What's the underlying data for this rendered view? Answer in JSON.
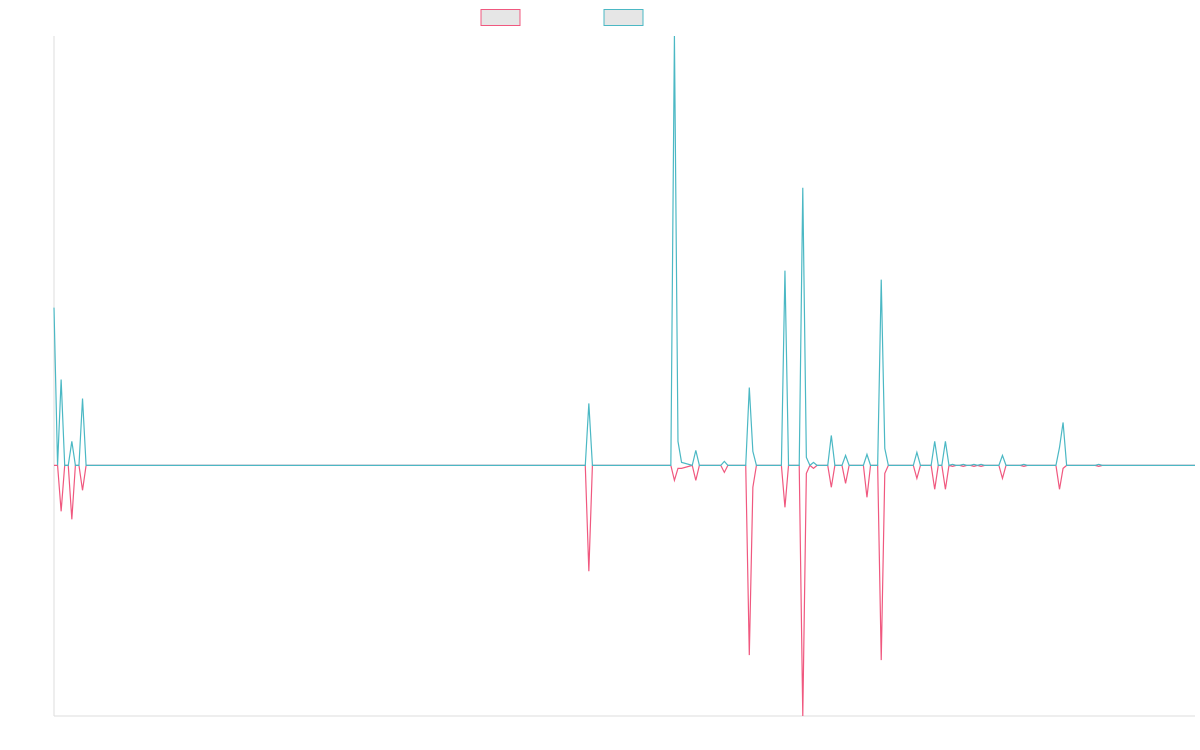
{
  "chart_data": {
    "type": "line",
    "x": [
      0,
      1,
      2,
      3,
      4,
      5,
      6,
      7,
      8,
      9,
      149,
      150,
      151,
      173,
      174,
      175,
      176,
      179,
      180,
      181,
      187,
      188,
      189,
      194,
      195,
      196,
      197,
      204,
      205,
      206,
      209,
      210,
      211,
      212,
      213,
      214,
      217,
      218,
      219,
      221,
      222,
      223,
      227,
      228,
      229,
      231,
      232,
      233,
      234,
      241,
      242,
      243,
      246,
      247,
      248,
      249,
      250,
      251,
      252,
      253,
      254,
      255,
      256,
      257,
      258,
      259,
      260,
      261,
      265,
      266,
      267,
      271,
      272,
      273,
      281,
      282,
      283,
      284,
      292,
      293,
      294,
      320
    ],
    "series": [
      {
        "color": "#f0587f",
        "values": [
          0,
          0,
          -46,
          0,
          0,
          -54,
          0,
          0,
          -25,
          0,
          0,
          -106,
          0,
          0,
          -15,
          -3,
          -3,
          0,
          -15,
          0,
          0,
          -7,
          0,
          0,
          -190,
          -22,
          0,
          0,
          -42,
          0,
          0,
          -251,
          -8,
          0,
          -3,
          0,
          0,
          -22,
          0,
          0,
          -18,
          0,
          0,
          -32,
          0,
          0,
          -195,
          -8,
          0,
          0,
          -13,
          0,
          0,
          -24,
          0,
          0,
          -24,
          0,
          -1,
          0,
          0,
          -1,
          0,
          0,
          -1,
          0,
          -1,
          0,
          0,
          -13,
          0,
          0,
          -1,
          0,
          0,
          -24,
          -3,
          0,
          0,
          -1,
          0,
          0
        ]
      },
      {
        "color": "#4bb8c4",
        "values": [
          158,
          0,
          86,
          0,
          0,
          24,
          0,
          0,
          67,
          0,
          0,
          62,
          0,
          0,
          430,
          24,
          3,
          0,
          15,
          0,
          0,
          4,
          0,
          0,
          78,
          14,
          0,
          0,
          195,
          0,
          0,
          278,
          8,
          0,
          3,
          0,
          0,
          30,
          0,
          0,
          10,
          0,
          0,
          11,
          0,
          0,
          186,
          17,
          0,
          0,
          13,
          0,
          0,
          24,
          0,
          0,
          24,
          0,
          1,
          0,
          0,
          1,
          0,
          0,
          1,
          0,
          1,
          0,
          0,
          10,
          0,
          0,
          1,
          0,
          0,
          18,
          43,
          0,
          0,
          1,
          0,
          0
        ]
      }
    ],
    "xlim": [
      0,
      320
    ],
    "ylim": [
      -251,
      430
    ]
  }
}
